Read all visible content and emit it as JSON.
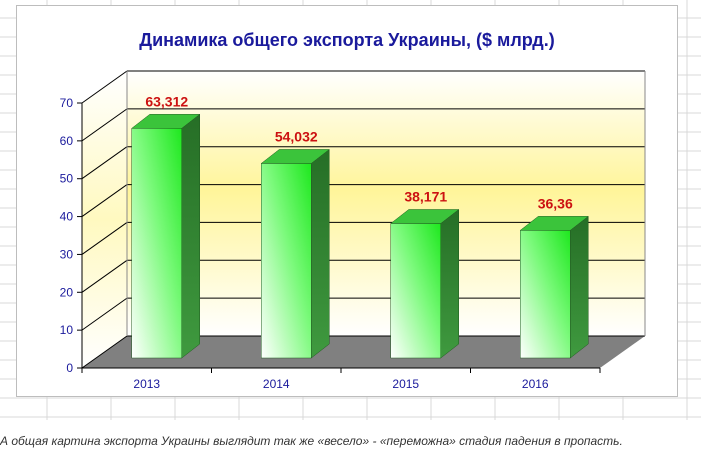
{
  "chart_data": {
    "type": "bar",
    "title": "Динамика общего экспорта Украины, ($ млрд.)",
    "categories": [
      "2013",
      "2014",
      "2015",
      "2016"
    ],
    "values": [
      63.312,
      54.032,
      38.171,
      36.36
    ],
    "data_labels": [
      "63,312",
      "54,032",
      "38,171",
      "36,36"
    ],
    "y_ticks": [
      "0",
      "10",
      "20",
      "30",
      "40",
      "50",
      "60",
      "70"
    ],
    "ylim": [
      0,
      70
    ],
    "xlabel": "",
    "ylabel": "",
    "grid": true,
    "style": "3d-column",
    "colors": {
      "bar_light": "#ffffff",
      "bar_dark": "#22ee22",
      "bar_side": "#2a7d2a",
      "label": "#cc1111",
      "axis_text": "#1a1a9c"
    }
  },
  "caption": "А общая картина экспорта Украины выглядит так же «весело» - «переможна» стадия падения в пропасть."
}
